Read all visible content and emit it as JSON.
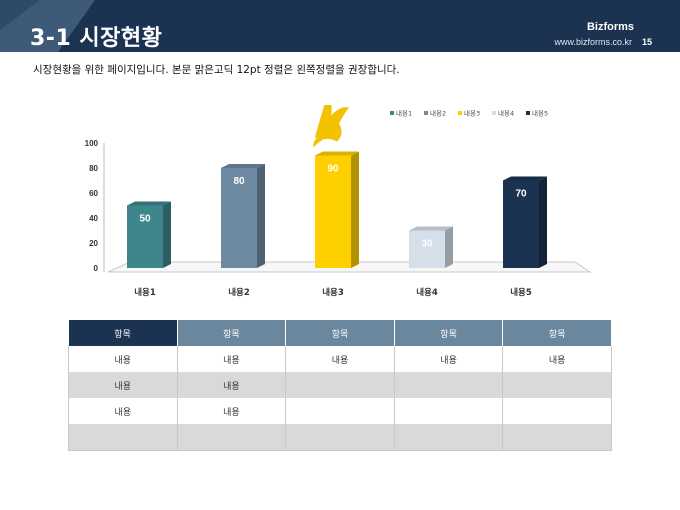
{
  "header": {
    "title": "3-1 시장현황",
    "brand": "Bizforms",
    "url": "www.bizforms.co.kr",
    "page_number": "15"
  },
  "intro_text": "시장현황을 위한 페이지입니다. 본문 맑은고딕 12pt 정렬은 왼쪽정렬을 권장합니다.",
  "chart_data": {
    "type": "bar",
    "categories": [
      "내용1",
      "내용2",
      "내용3",
      "내용4",
      "내용5"
    ],
    "values": [
      50,
      80,
      90,
      30,
      70
    ],
    "colors": [
      "#3e868c",
      "#6e8aa3",
      "#ffd000",
      "#d5dfe9",
      "#1b3350"
    ],
    "legend": [
      "내용1",
      "내용2",
      "내용3",
      "내용4",
      "내용5"
    ],
    "legend_placement": "top-right",
    "ylim": [
      0,
      100
    ],
    "yticks": [
      "0",
      "20",
      "40",
      "60",
      "80",
      "100"
    ],
    "data_labels": [
      "50",
      "80",
      "90",
      "30",
      "70"
    ]
  },
  "table": {
    "headers": [
      "항목",
      "항목",
      "항목",
      "항목",
      "항목"
    ],
    "rows": [
      [
        "내용",
        "내용",
        "내용",
        "내용",
        "내용"
      ],
      [
        "내용",
        "내용",
        "",
        "",
        ""
      ],
      [
        "내용",
        "내용",
        "",
        "",
        ""
      ],
      [
        "",
        "",
        "",
        "",
        ""
      ]
    ]
  }
}
